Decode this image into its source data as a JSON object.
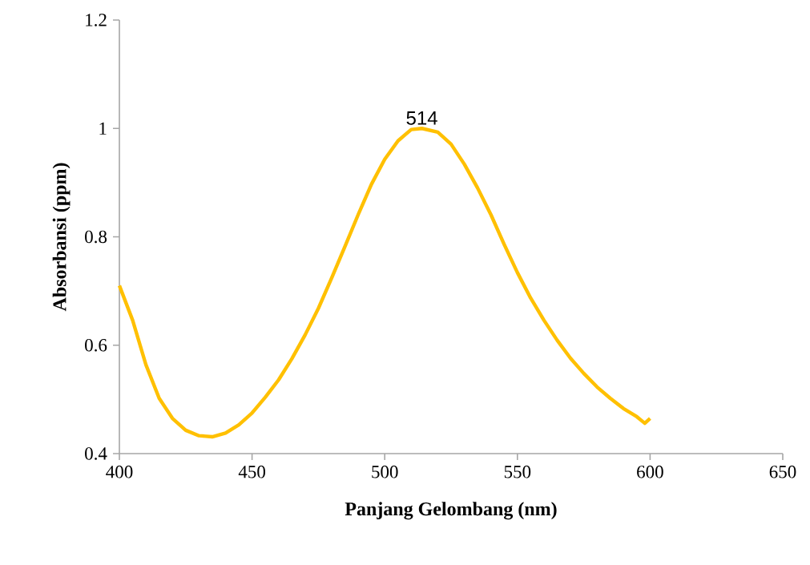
{
  "chart_data": {
    "type": "line",
    "xlabel": "Panjang Gelombang (nm)",
    "ylabel": "Absorbansi (ppm)",
    "x": [
      400,
      405,
      410,
      415,
      420,
      425,
      430,
      435,
      440,
      445,
      450,
      455,
      460,
      465,
      470,
      475,
      480,
      485,
      490,
      495,
      500,
      505,
      510,
      514,
      520,
      525,
      530,
      535,
      540,
      545,
      550,
      555,
      560,
      565,
      570,
      575,
      580,
      585,
      590,
      595,
      598,
      600
    ],
    "series": [
      {
        "color": "#ffc000",
        "values": [
          0.71,
          0.646,
          0.564,
          0.502,
          0.465,
          0.443,
          0.433,
          0.431,
          0.438,
          0.453,
          0.475,
          0.504,
          0.536,
          0.575,
          0.619,
          0.668,
          0.724,
          0.782,
          0.841,
          0.897,
          0.943,
          0.977,
          0.998,
          1.0,
          0.993,
          0.971,
          0.934,
          0.89,
          0.841,
          0.786,
          0.734,
          0.687,
          0.646,
          0.609,
          0.576,
          0.548,
          0.523,
          0.502,
          0.483,
          0.468,
          0.456,
          0.465
        ]
      }
    ],
    "xlim": [
      400,
      650
    ],
    "xticks": [
      400,
      450,
      500,
      550,
      600,
      650
    ],
    "ylim": [
      0.4,
      1.2
    ],
    "yticks": [
      0.4,
      0.6,
      0.8,
      1,
      1.2
    ],
    "grid": false,
    "marker": "none",
    "line_style": "solid",
    "annotations": [
      {
        "text": "514",
        "x": 514,
        "y": 1.0
      }
    ]
  }
}
